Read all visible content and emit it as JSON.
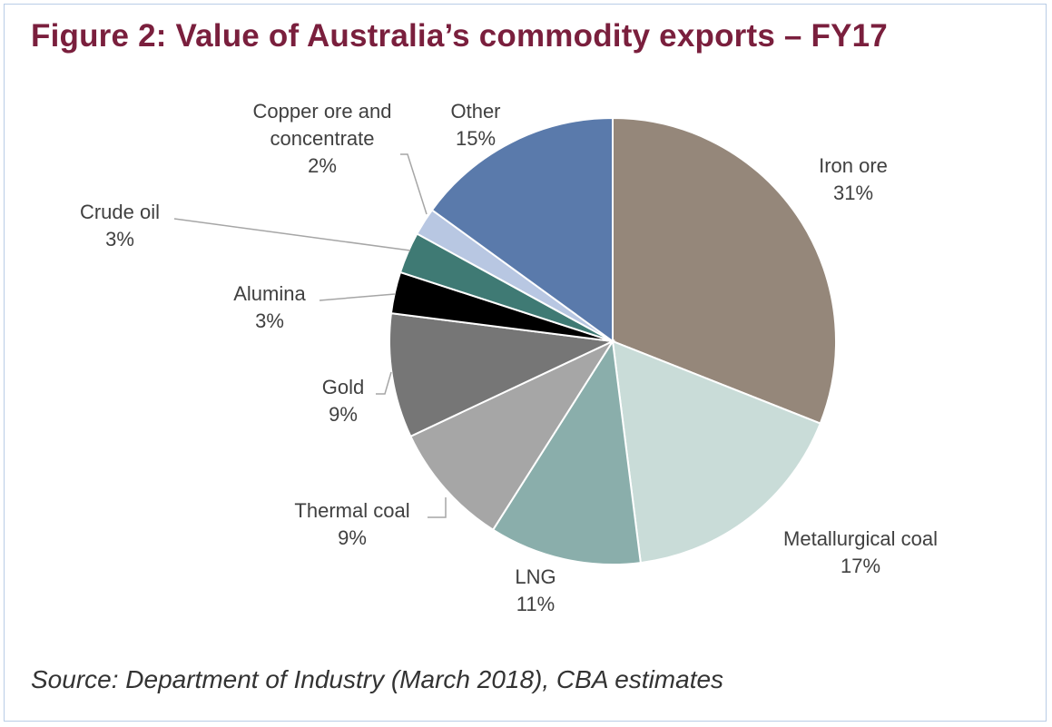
{
  "chart_data": {
    "type": "pie",
    "title": "Figure 2: Value of Australia’s commodity exports – FY17",
    "source": "Source: Department of Industry (March 2018), CBA estimates",
    "slices": [
      {
        "name": "Iron ore",
        "label_lines": [
          "Iron ore"
        ],
        "value": 31,
        "value_label": "31%",
        "color": "#95877a"
      },
      {
        "name": "Metallurgical coal",
        "label_lines": [
          "Metallurgical coal"
        ],
        "value": 17,
        "value_label": "17%",
        "color": "#c9dcd8"
      },
      {
        "name": "LNG",
        "label_lines": [
          "LNG"
        ],
        "value": 11,
        "value_label": "11%",
        "color": "#8aaeab"
      },
      {
        "name": "Thermal coal",
        "label_lines": [
          "Thermal coal"
        ],
        "value": 9,
        "value_label": "9%",
        "color": "#a6a6a6"
      },
      {
        "name": "Gold",
        "label_lines": [
          "Gold"
        ],
        "value": 9,
        "value_label": "9%",
        "color": "#767676"
      },
      {
        "name": "Alumina",
        "label_lines": [
          "Alumina"
        ],
        "value": 3,
        "value_label": "3%",
        "color": "#000000"
      },
      {
        "name": "Crude oil",
        "label_lines": [
          "Crude oil"
        ],
        "value": 3,
        "value_label": "3%",
        "color": "#3f7a74"
      },
      {
        "name": "Copper ore and concentrate",
        "label_lines": [
          "Copper ore and",
          "concentrate"
        ],
        "value": 2,
        "value_label": "2%",
        "color": "#b8c7e2"
      },
      {
        "name": "Other",
        "label_lines": [
          "Other"
        ],
        "value": 15,
        "value_label": "15%",
        "color": "#5a7aab"
      }
    ]
  }
}
